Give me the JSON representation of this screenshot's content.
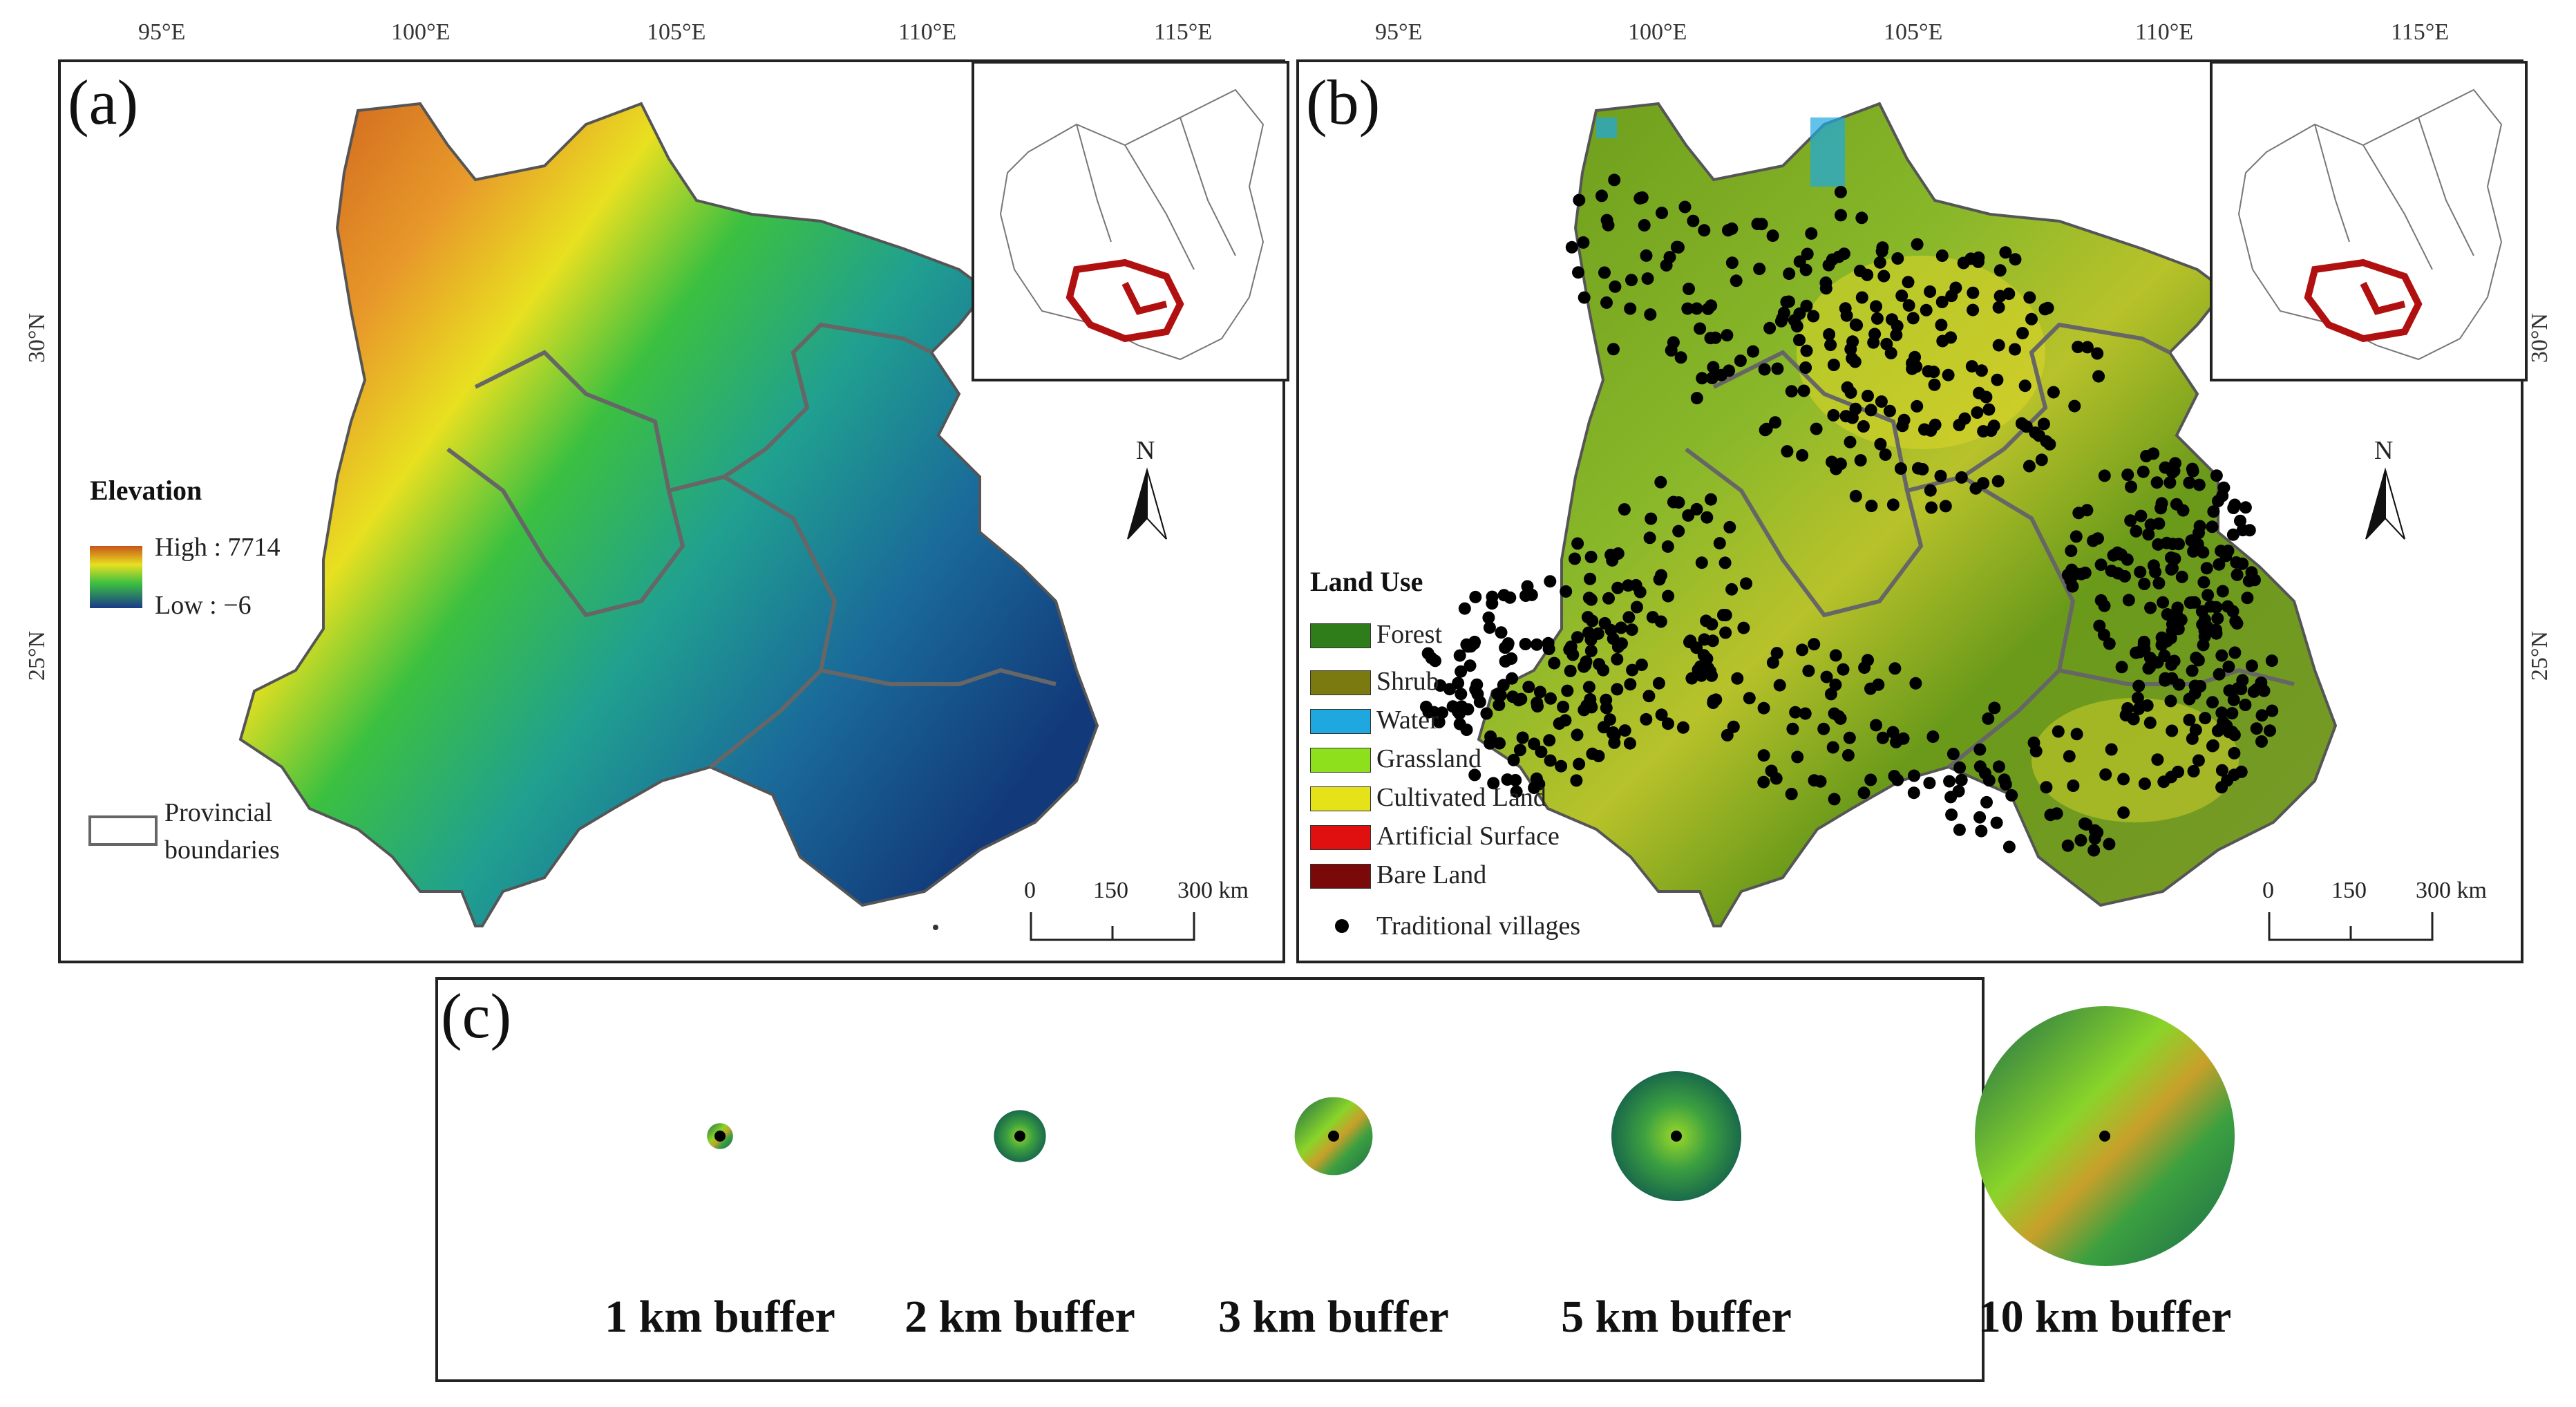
{
  "panels": {
    "a": {
      "label": "(a)",
      "lon_ticks": [
        "95°E",
        "100°E",
        "105°E",
        "110°E",
        "115°E"
      ],
      "lat_ticks": [
        "30°N",
        "25°N"
      ],
      "legend": {
        "title": "Elevation",
        "high": "High : 7714",
        "low": "Low : −6",
        "boundary_label_1": "Provincial",
        "boundary_label_2": "boundaries"
      },
      "north": "N",
      "scale": [
        "0",
        "150",
        "300 km"
      ]
    },
    "b": {
      "label": "(b)",
      "lon_ticks": [
        "95°E",
        "100°E",
        "105°E",
        "110°E",
        "115°E"
      ],
      "lat_ticks": [
        "30°N",
        "25°N"
      ],
      "legend": {
        "title": "Land Use",
        "items": [
          {
            "label": "Forest",
            "color": "#2e7d1a"
          },
          {
            "label": "Shrub",
            "color": "#7a7a10"
          },
          {
            "label": "Water",
            "color": "#1fa8e0"
          },
          {
            "label": "Grassland",
            "color": "#8fe01c"
          },
          {
            "label": "Cultivated Land",
            "color": "#e6e21a"
          },
          {
            "label": "Artificial Surface",
            "color": "#e01010"
          },
          {
            "label": "Bare Land",
            "color": "#7a0a0a"
          }
        ],
        "villages": "Traditional villages"
      },
      "north": "N",
      "scale": [
        "0",
        "150",
        "300 km"
      ]
    },
    "c": {
      "label": "(c)",
      "buffers": [
        {
          "label": "1 km buffer",
          "radius_km": 1
        },
        {
          "label": "2 km buffer",
          "radius_km": 2
        },
        {
          "label": "3 km buffer",
          "radius_km": 3
        },
        {
          "label": "5 km buffer",
          "radius_km": 5
        },
        {
          "label": "10 km buffer",
          "radius_km": 10
        }
      ]
    }
  },
  "colors": {
    "boundary": "#666666",
    "highlight": "#b01010",
    "elev_high": "#c8541a",
    "elev_mid": "#e8e020",
    "elev_green": "#3cc040",
    "elev_low": "#1a4a8a"
  }
}
